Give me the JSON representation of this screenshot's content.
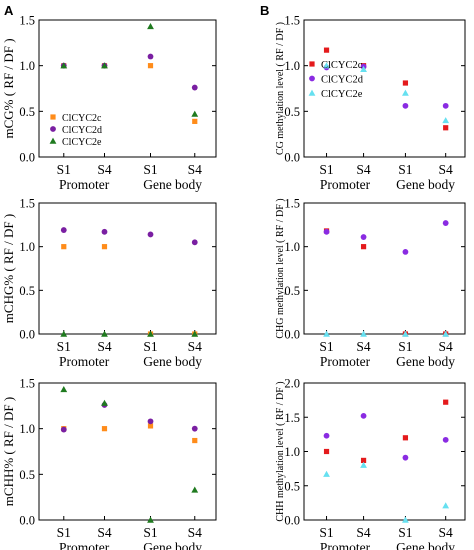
{
  "figure": {
    "panel_labels": [
      "A",
      "B"
    ],
    "series_colors": {
      "ClCYC2c": "#FF8C1A",
      "ClCYC2d": "#7A1FA2",
      "ClCYC2e": "#1F7A1F"
    }
  },
  "chart_data": [
    {
      "id": "A1",
      "type": "scatter",
      "panel_label": "A",
      "ylabel": "mCG% ( RF / DF )",
      "ylim": [
        0,
        1.5
      ],
      "yticks": [
        0,
        0.5,
        1.0,
        1.5
      ],
      "categories": [
        "S1",
        "S4",
        "S1",
        "S4"
      ],
      "groups": [
        "Promoter",
        "Gene body"
      ],
      "legend": "lower-left",
      "series": [
        {
          "name": "ClCYC2c",
          "marker": "square",
          "color": "#FF8C1A",
          "values": [
            1.0,
            1.0,
            1.0,
            0.39
          ]
        },
        {
          "name": "ClCYC2d",
          "marker": "circle",
          "color": "#7A1FA2",
          "values": [
            1.0,
            1.0,
            1.1,
            0.76
          ]
        },
        {
          "name": "ClCYC2e",
          "marker": "triangle",
          "color": "#1F7A1F",
          "values": [
            1.0,
            1.0,
            1.43,
            0.47
          ]
        }
      ]
    },
    {
      "id": "B1",
      "type": "scatter",
      "panel_label": "B",
      "ylabel": "CG methylation level ( RF / DF )",
      "ylim": [
        0,
        1.5
      ],
      "yticks": [
        0,
        0.5,
        1.0,
        1.5
      ],
      "categories": [
        "S1",
        "S4",
        "S1",
        "S4"
      ],
      "groups": [
        "Promoter",
        "Gene body"
      ],
      "legend": "middle-left",
      "series": [
        {
          "name": "ClCYC2c",
          "marker": "square",
          "color": "#E41A1C",
          "values": [
            1.17,
            1.0,
            0.81,
            0.32
          ]
        },
        {
          "name": "ClCYC2d",
          "marker": "circle",
          "color": "#8A2BE2",
          "values": [
            0.98,
            0.99,
            0.56,
            0.56
          ]
        },
        {
          "name": "ClCYC2e",
          "marker": "triangle",
          "color": "#66E0F0",
          "values": [
            1.0,
            0.96,
            0.7,
            0.4
          ]
        }
      ]
    },
    {
      "id": "A2",
      "type": "scatter",
      "ylabel": "mCHG% ( RF / DF )",
      "ylim": [
        0,
        1.5
      ],
      "yticks": [
        0,
        0.5,
        1.0,
        1.5
      ],
      "categories": [
        "S1",
        "S4",
        "S1",
        "S4"
      ],
      "groups": [
        "Promoter",
        "Gene body"
      ],
      "series": [
        {
          "name": "ClCYC2c",
          "marker": "square",
          "color": "#FF8C1A",
          "values": [
            1.0,
            1.0,
            0.0,
            0.0
          ]
        },
        {
          "name": "ClCYC2d",
          "marker": "circle",
          "color": "#7A1FA2",
          "values": [
            1.19,
            1.17,
            1.14,
            1.05
          ]
        },
        {
          "name": "ClCYC2e",
          "marker": "triangle",
          "color": "#1F7A1F",
          "values": [
            0.0,
            0.0,
            0.0,
            0.0
          ]
        }
      ]
    },
    {
      "id": "B2",
      "type": "scatter",
      "ylabel": "CHG methylation level ( RF / DF )",
      "ylim": [
        0,
        1.5
      ],
      "yticks": [
        0,
        0.5,
        1.0,
        1.5
      ],
      "categories": [
        "S1",
        "S4",
        "S1",
        "S4"
      ],
      "groups": [
        "Promoter",
        "Gene body"
      ],
      "series": [
        {
          "name": "ClCYC2c",
          "marker": "square",
          "color": "#E41A1C",
          "values": [
            1.18,
            1.0,
            0.0,
            0.0
          ]
        },
        {
          "name": "ClCYC2d",
          "marker": "circle",
          "color": "#8A2BE2",
          "values": [
            1.17,
            1.11,
            0.94,
            1.27
          ]
        },
        {
          "name": "ClCYC2e",
          "marker": "triangle",
          "color": "#66E0F0",
          "values": [
            0.0,
            0.0,
            0.0,
            0.0
          ]
        }
      ]
    },
    {
      "id": "A3",
      "type": "scatter",
      "ylabel": "mCHH% ( RF / DF )",
      "ylim": [
        0,
        1.5
      ],
      "yticks": [
        0,
        0.5,
        1.0,
        1.5
      ],
      "categories": [
        "S1",
        "S4",
        "S1",
        "S4"
      ],
      "groups": [
        "Promoter",
        "Gene body"
      ],
      "series": [
        {
          "name": "ClCYC2c",
          "marker": "square",
          "color": "#FF8C1A",
          "values": [
            1.0,
            1.0,
            1.03,
            0.87
          ]
        },
        {
          "name": "ClCYC2d",
          "marker": "circle",
          "color": "#7A1FA2",
          "values": [
            0.99,
            1.26,
            1.08,
            1.0
          ]
        },
        {
          "name": "ClCYC2e",
          "marker": "triangle",
          "color": "#1F7A1F",
          "values": [
            1.43,
            1.28,
            0.0,
            0.33
          ]
        }
      ]
    },
    {
      "id": "B3",
      "type": "scatter",
      "ylabel": "CHH methylation level ( RF / DF )",
      "ylim": [
        0,
        2.0
      ],
      "yticks": [
        0,
        0.5,
        1.0,
        1.5,
        2.0
      ],
      "categories": [
        "S1",
        "S4",
        "S1",
        "S4"
      ],
      "groups": [
        "Promoter",
        "Gene body"
      ],
      "series": [
        {
          "name": "ClCYC2c",
          "marker": "square",
          "color": "#E41A1C",
          "values": [
            1.0,
            0.87,
            1.2,
            1.72
          ]
        },
        {
          "name": "ClCYC2d",
          "marker": "circle",
          "color": "#8A2BE2",
          "values": [
            1.23,
            1.52,
            0.91,
            1.17
          ]
        },
        {
          "name": "ClCYC2e",
          "marker": "triangle",
          "color": "#66E0F0",
          "values": [
            0.67,
            0.8,
            0.0,
            0.21
          ]
        }
      ]
    }
  ]
}
